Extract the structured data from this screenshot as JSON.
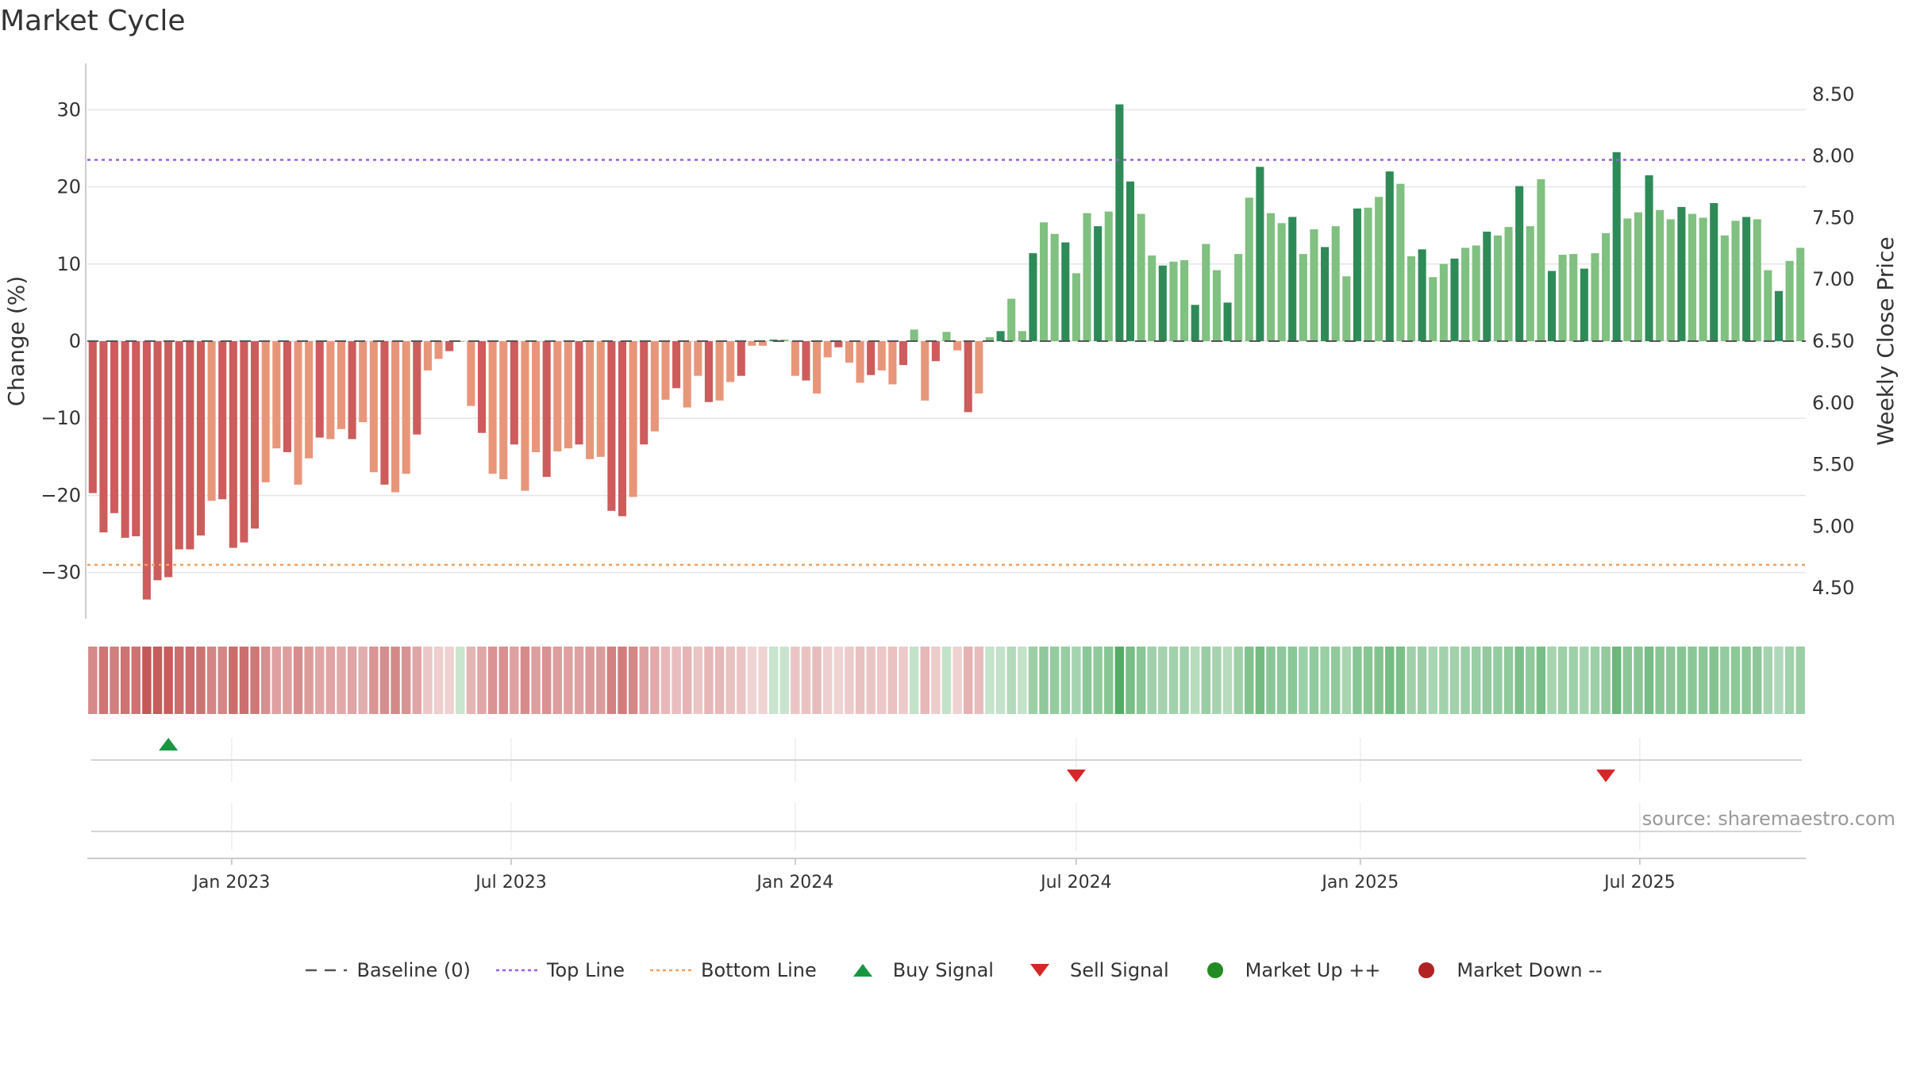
{
  "title": "Market Cycle",
  "source_note": "source: sharemaestro.com",
  "colors": {
    "neg_dark": "#cd5c5c",
    "neg_light": "#e8967a",
    "pos_dark": "#2e8b57",
    "pos_light": "#80c080",
    "top_line": "#9b5de5",
    "bottom_line": "#f0a060",
    "baseline": "#555555",
    "buy": "#1a9641",
    "sell": "#d62728",
    "market_up": "#228b22",
    "market_down": "#b22222"
  },
  "chart_data": {
    "type": "bar",
    "x_start": "2022-10-03",
    "interval": "weekly",
    "x_tick_labels": [
      "Jan 2023",
      "Jul 2023",
      "Jan 2024",
      "Jul 2024",
      "Jan 2025",
      "Jul 2025"
    ],
    "x_tick_dates": [
      "2023-01-01",
      "2023-07-01",
      "2024-01-01",
      "2024-07-01",
      "2025-01-01",
      "2025-07-01"
    ],
    "ylabel_left": "Change (%)",
    "ylabel_right": "Weekly Close Price",
    "y_ticks_left": [
      "30",
      "20",
      "10",
      "0",
      "−10",
      "−20",
      "−30"
    ],
    "y_tick_values_left": [
      30,
      20,
      10,
      0,
      -10,
      -20,
      -30
    ],
    "y_ticks_right": [
      "8.50",
      "8.00",
      "7.50",
      "7.00",
      "6.50",
      "6.00",
      "5.50",
      "5.00",
      "4.50"
    ],
    "y_tick_values_right": [
      8.5,
      8.0,
      7.5,
      7.0,
      6.5,
      6.0,
      5.5,
      5.0,
      4.5
    ],
    "ylim_left": [
      -36,
      36
    ],
    "ylim_right": [
      4.25,
      8.75
    ],
    "top_line": 23.5,
    "bottom_line": -29,
    "values": [
      -19.7,
      -24.8,
      -22.3,
      -25.5,
      -25.3,
      -33.5,
      -31,
      -30.6,
      -27,
      -27,
      -25.2,
      -20.7,
      -20.5,
      -26.8,
      -26.1,
      -24.3,
      -18.3,
      -13.9,
      -14.4,
      -18.6,
      -15.2,
      -12.5,
      -12.7,
      -11.4,
      -12.7,
      -10.5,
      -17,
      -18.6,
      -19.6,
      -17.2,
      -12.1,
      -3.8,
      -2.3,
      -1.3,
      0,
      -8.4,
      -11.9,
      -17.2,
      -17.9,
      -13.4,
      -19.4,
      -14.4,
      -17.6,
      -14.3,
      -13.9,
      -13.4,
      -15.3,
      -15,
      -22,
      -22.7,
      -20.2,
      -13.4,
      -11.7,
      -7.6,
      -6.1,
      -8.6,
      -4.5,
      -7.9,
      -7.7,
      -5.3,
      -4.5,
      -0.6,
      -0.6,
      0.2,
      0.2,
      -4.5,
      -5.1,
      -6.8,
      -2.1,
      -0.8,
      -2.8,
      -5.4,
      -4.4,
      -3.8,
      -5.6,
      -3.1,
      1.5,
      -7.7,
      -2.6,
      1.2,
      -1.2,
      -9.2,
      -6.8,
      0.5,
      1.3,
      5.5,
      1.3,
      11.4,
      15.4,
      13.9,
      12.8,
      8.8,
      16.6,
      14.9,
      16.8,
      30.7,
      20.7,
      16.5,
      11.1,
      9.8,
      10.3,
      10.5,
      4.7,
      12.6,
      9.2,
      5,
      11.3,
      18.6,
      22.6,
      16.6,
      15.3,
      16.1,
      11.3,
      14.5,
      12.2,
      14.9,
      8.4,
      17.2,
      17.3,
      18.7,
      22,
      20.4,
      11,
      11.9,
      8.3,
      10,
      10.7,
      12.1,
      12.4,
      14.2,
      13.7,
      14.8,
      20.1,
      14.9,
      21,
      9.1,
      11.2,
      11.3,
      9.4,
      11.4,
      14,
      24.5,
      15.9,
      16.7,
      21.5,
      17,
      15.8,
      17.4,
      16.5,
      16,
      17.9,
      13.7,
      15.6,
      16.1,
      15.8,
      9.2,
      6.5,
      10.4,
      12.1
    ],
    "buy_signals": [
      "2022-11-21"
    ],
    "sell_signals": [
      "2024-07-01",
      "2025-06-09"
    ],
    "market_up_signals": [],
    "market_down_signals": [],
    "grid": true
  },
  "legend": [
    {
      "key": "baseline",
      "label": "Baseline (0)",
      "icon": "dash-line"
    },
    {
      "key": "top_line",
      "label": "Top Line",
      "icon": "dotted-line"
    },
    {
      "key": "bottom_line",
      "label": "Bottom Line",
      "icon": "dotted-line"
    },
    {
      "key": "buy",
      "label": "Buy Signal",
      "icon": "triangle-up"
    },
    {
      "key": "sell",
      "label": "Sell Signal",
      "icon": "triangle-down"
    },
    {
      "key": "market_up",
      "label": "Market Up ++",
      "icon": "circle"
    },
    {
      "key": "market_down",
      "label": "Market Down --",
      "icon": "circle"
    }
  ]
}
